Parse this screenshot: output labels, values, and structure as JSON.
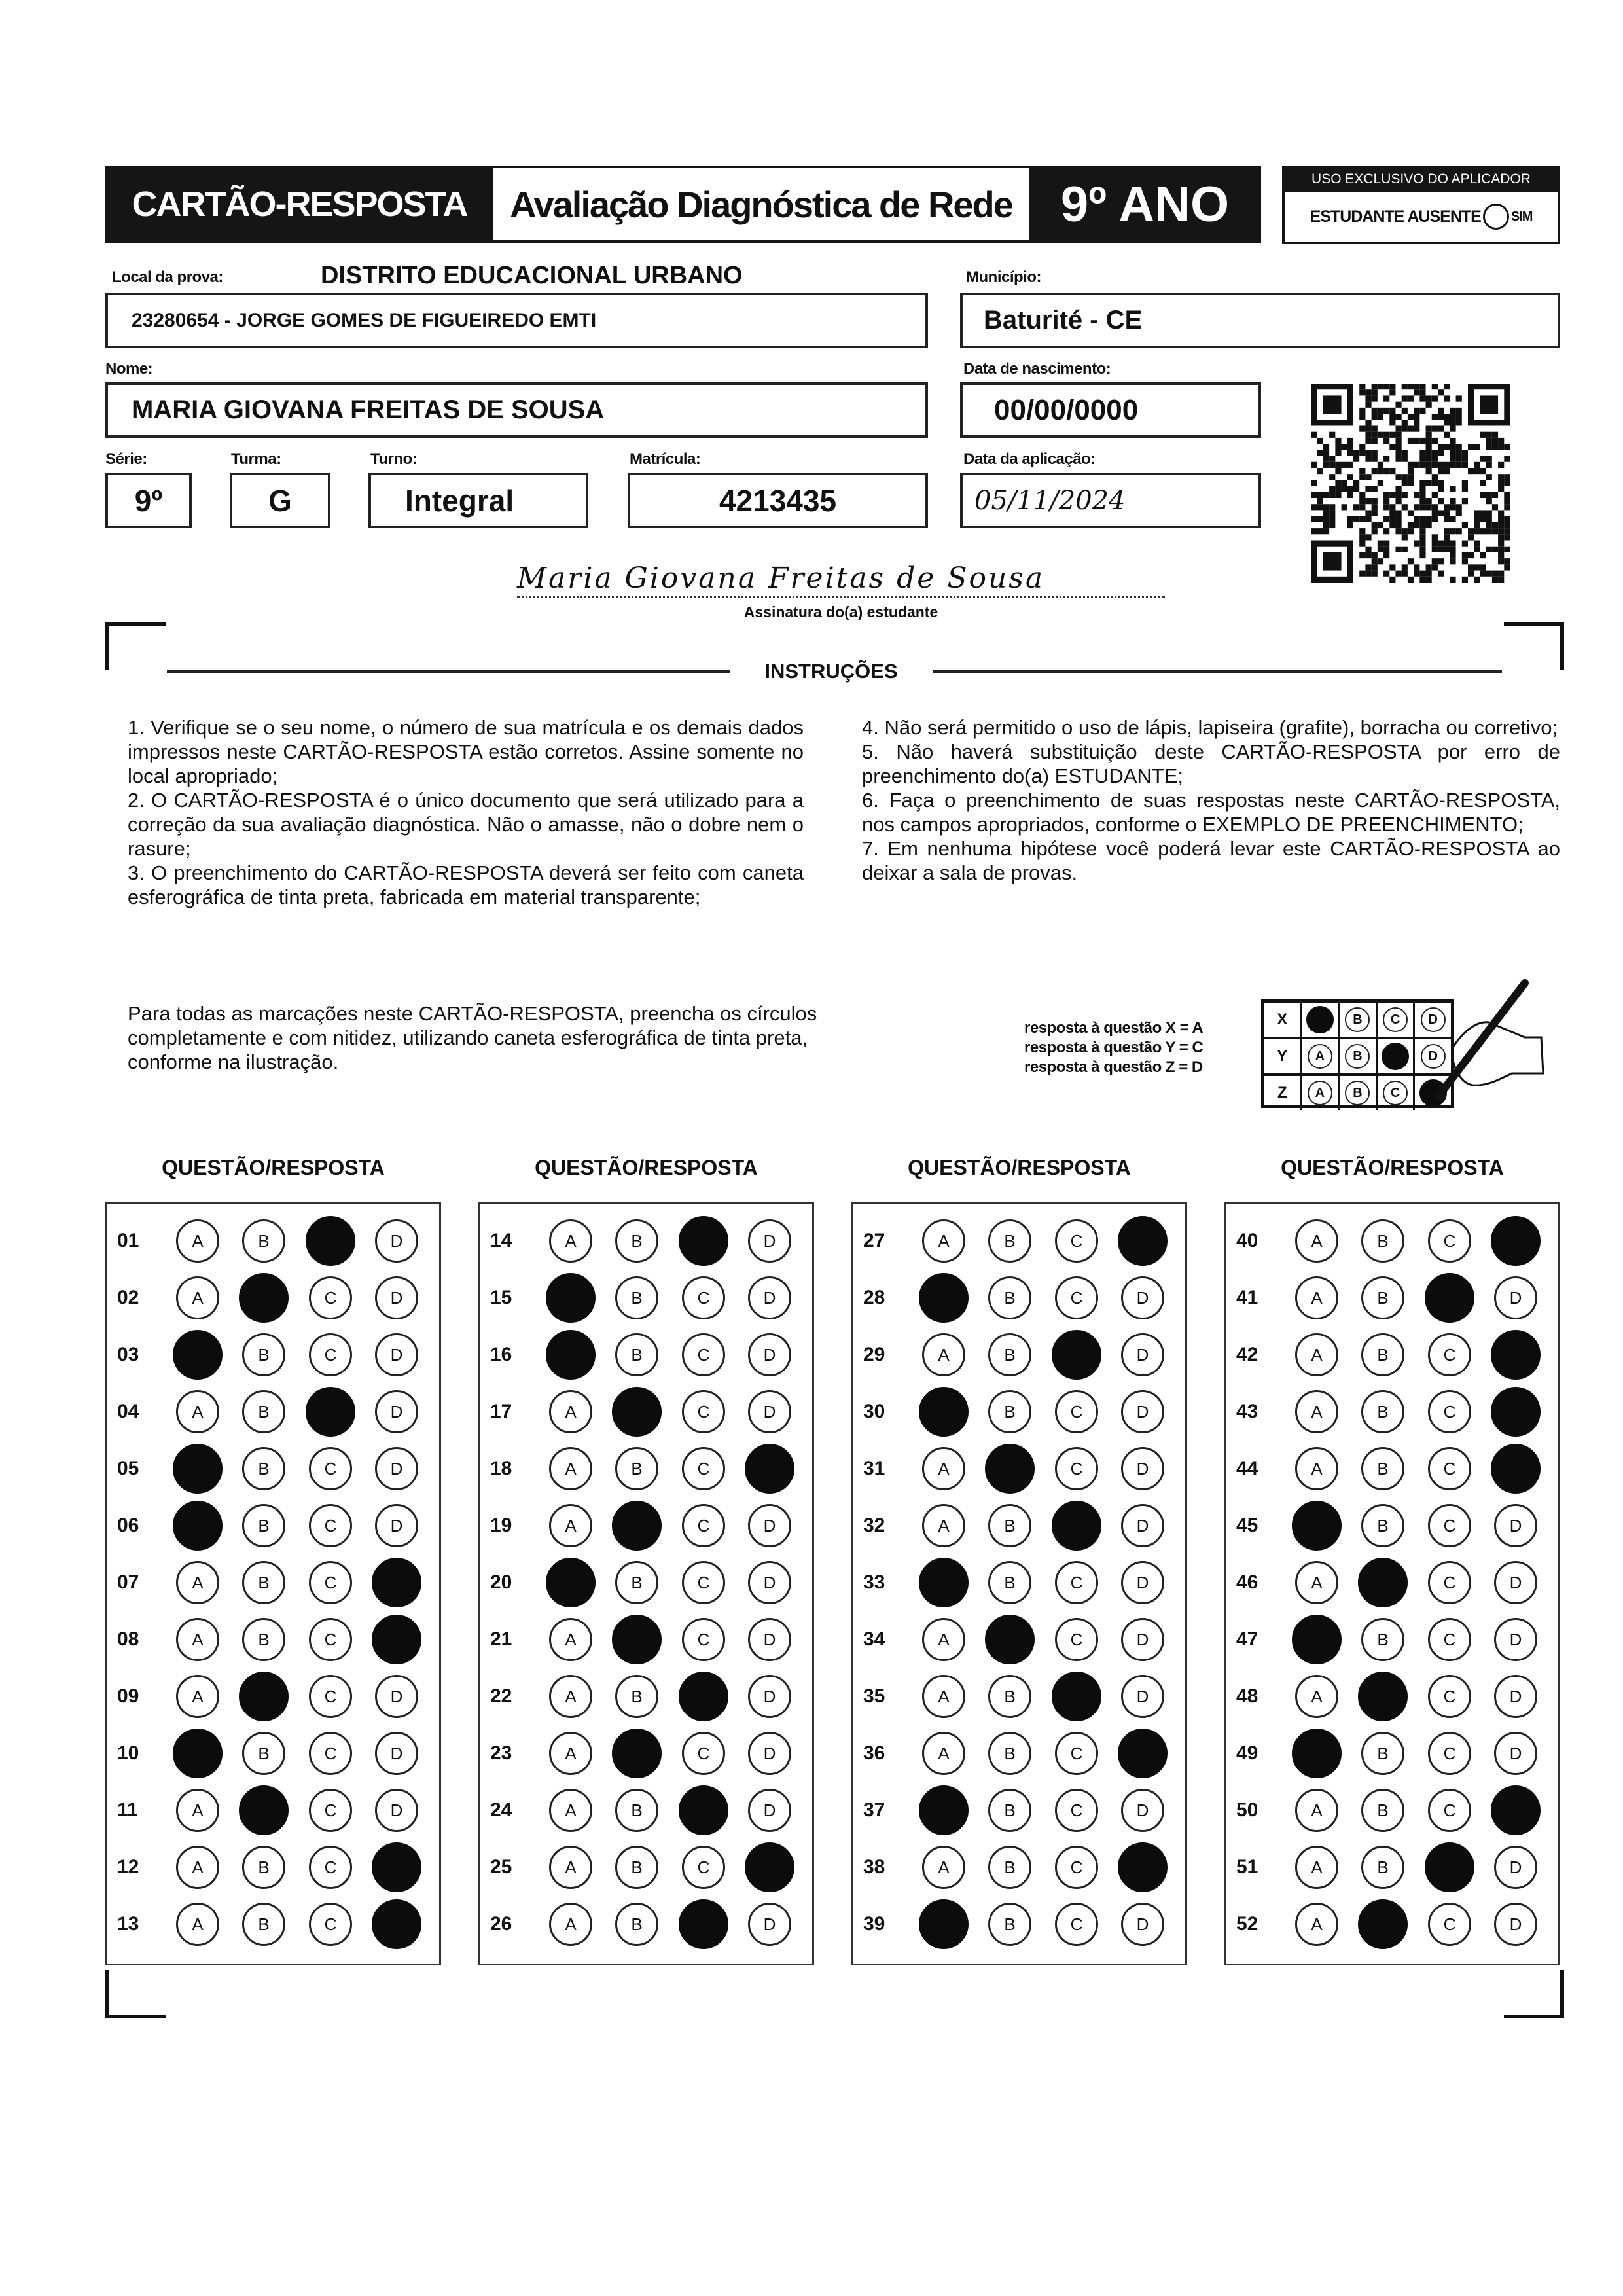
{
  "header": {
    "card_title": "CARTÃO-RESPOSTA",
    "exam_title": "Avaliação Diagnóstica de Rede",
    "grade": "9º ANO",
    "applicator": {
      "heading": "USO EXCLUSIVO DO APLICADOR",
      "absent_label": "ESTUDANTE AUSENTE",
      "absent_option": "SIM",
      "absent_marked": false
    }
  },
  "fields": {
    "local_label": "Local da prova:",
    "local_district": "DISTRITO EDUCACIONAL URBANO",
    "local_value": "23280654 - JORGE GOMES DE FIGUEIREDO EMTI",
    "municipio_label": "Município:",
    "municipio_value": "Baturité - CE",
    "nome_label": "Nome:",
    "nome_value": "MARIA GIOVANA FREITAS DE SOUSA",
    "nascimento_label": "Data de nascimento:",
    "nascimento_value": "00/00/0000",
    "serie_label": "Série:",
    "serie_value": "9º",
    "turma_label": "Turma:",
    "turma_value": "G",
    "turno_label": "Turno:",
    "turno_value": "Integral",
    "matricula_label": "Matrícula:",
    "matricula_value": "4213435",
    "aplicacao_label": "Data da aplicação:",
    "aplicacao_value": "05/11/2024"
  },
  "signature": {
    "value": "Maria Giovana Freitas de Sousa",
    "caption": "Assinatura do(a) estudante"
  },
  "instructions": {
    "title": "INSTRUÇÕES",
    "left": [
      "1. Verifique se o seu nome, o número de sua matrícula e os demais dados impressos neste CARTÃO-RESPOSTA estão corretos. Assine somente no local apropriado;",
      "2. O CARTÃO-RESPOSTA é o único documento que será utilizado para a correção da sua avaliação diagnóstica. Não o amasse, não o dobre nem o rasure;",
      "3. O preenchimento do CARTÃO-RESPOSTA deverá ser feito com caneta esferográfica de tinta preta, fabricada em material transparente;"
    ],
    "right": [
      "4. Não será permitido o uso de lápis, lapiseira (grafite), borracha ou corretivo;",
      "5. Não haverá substituição deste CARTÃO-RESPOSTA por erro de preenchimento do(a) ESTUDANTE;",
      "6. Faça o preenchimento de suas respostas neste CARTÃO-RESPOSTA, nos campos apropriados, conforme o EXEMPLO DE PREENCHIMENTO;",
      "7. Em nenhuma hipótese você poderá levar este CARTÃO-RESPOSTA ao deixar a sala de provas."
    ]
  },
  "fill_note": "Para todas as marcações neste CARTÃO-RESPOSTA, preencha os círculos completamente e com nitidez, utilizando caneta esferográfica de tinta preta, conforme na ilustração.",
  "example": {
    "captions": [
      "resposta à questão X = A",
      "resposta à questão Y = C",
      "resposta à questão Z = D"
    ],
    "rows": [
      {
        "label": "X",
        "marked": "A"
      },
      {
        "label": "Y",
        "marked": "C"
      },
      {
        "label": "Z",
        "marked": "D"
      }
    ]
  },
  "answer_sheet": {
    "column_header": "QUESTÃO/RESPOSTA",
    "options": [
      "A",
      "B",
      "C",
      "D"
    ],
    "columns": [
      [
        [
          "01",
          "C"
        ],
        [
          "02",
          "B"
        ],
        [
          "03",
          "A"
        ],
        [
          "04",
          "C"
        ],
        [
          "05",
          "A"
        ],
        [
          "06",
          "A"
        ],
        [
          "07",
          "D"
        ],
        [
          "08",
          "D"
        ],
        [
          "09",
          "B"
        ],
        [
          "10",
          "A"
        ],
        [
          "11",
          "B"
        ],
        [
          "12",
          "D"
        ],
        [
          "13",
          "D"
        ]
      ],
      [
        [
          "14",
          "C"
        ],
        [
          "15",
          "A"
        ],
        [
          "16",
          "A"
        ],
        [
          "17",
          "B"
        ],
        [
          "18",
          "D"
        ],
        [
          "19",
          "B"
        ],
        [
          "20",
          "A"
        ],
        [
          "21",
          "B"
        ],
        [
          "22",
          "C"
        ],
        [
          "23",
          "B"
        ],
        [
          "24",
          "C"
        ],
        [
          "25",
          "D"
        ],
        [
          "26",
          "C"
        ]
      ],
      [
        [
          "27",
          "D"
        ],
        [
          "28",
          "A"
        ],
        [
          "29",
          "C"
        ],
        [
          "30",
          "A"
        ],
        [
          "31",
          "B"
        ],
        [
          "32",
          "C"
        ],
        [
          "33",
          "A"
        ],
        [
          "34",
          "B"
        ],
        [
          "35",
          "C"
        ],
        [
          "36",
          "D"
        ],
        [
          "37",
          "A"
        ],
        [
          "38",
          "D"
        ],
        [
          "39",
          "A"
        ]
      ],
      [
        [
          "40",
          "D"
        ],
        [
          "41",
          "C"
        ],
        [
          "42",
          "D"
        ],
        [
          "43",
          "D"
        ],
        [
          "44",
          "D"
        ],
        [
          "45",
          "A"
        ],
        [
          "46",
          "B"
        ],
        [
          "47",
          "A"
        ],
        [
          "48",
          "B"
        ],
        [
          "49",
          "A"
        ],
        [
          "50",
          "D"
        ],
        [
          "51",
          "C"
        ],
        [
          "52",
          "B"
        ]
      ]
    ]
  }
}
